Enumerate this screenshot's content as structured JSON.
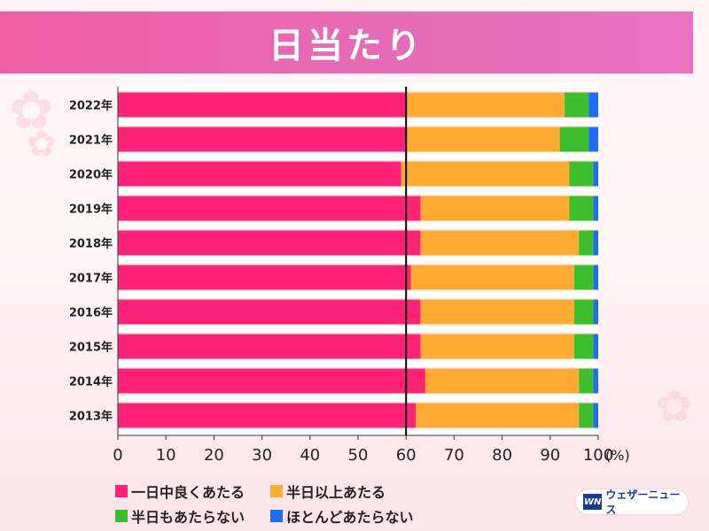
{
  "title": "日当たり",
  "brand": {
    "mark": "WN",
    "name": "ウェザーニュース"
  },
  "colors": {
    "background": "#fff3f6",
    "title_band": "#e967b2",
    "reference_line": "#000000"
  },
  "chart_data": {
    "type": "bar",
    "orientation": "horizontal",
    "stacked": true,
    "categories": [
      "2022年",
      "2021年",
      "2020年",
      "2019年",
      "2018年",
      "2017年",
      "2016年",
      "2015年",
      "2014年",
      "2013年"
    ],
    "series": [
      {
        "name": "一日中良くあたる",
        "color": "#ff2277",
        "values": [
          60,
          60,
          59,
          63,
          63,
          61,
          63,
          63,
          64,
          62
        ]
      },
      {
        "name": "半日以上あたる",
        "color": "#ffaa33",
        "values": [
          33,
          32,
          35,
          31,
          33,
          34,
          32,
          32,
          32,
          34
        ]
      },
      {
        "name": "半日もあたらない",
        "color": "#3dbe2c",
        "values": [
          5,
          6,
          5,
          5,
          3,
          4,
          4,
          4,
          3,
          3
        ]
      },
      {
        "name": "ほとんどあたらない",
        "color": "#1e6ef0",
        "values": [
          2,
          2,
          1,
          1,
          1,
          1,
          1,
          1,
          1,
          1
        ]
      }
    ],
    "xlim": [
      0,
      100
    ],
    "xticks": [
      0,
      10,
      20,
      30,
      40,
      50,
      60,
      70,
      80,
      90,
      100
    ],
    "x_unit": "(%)",
    "reference_line_x": 60,
    "legend_position": "bottom-left"
  }
}
